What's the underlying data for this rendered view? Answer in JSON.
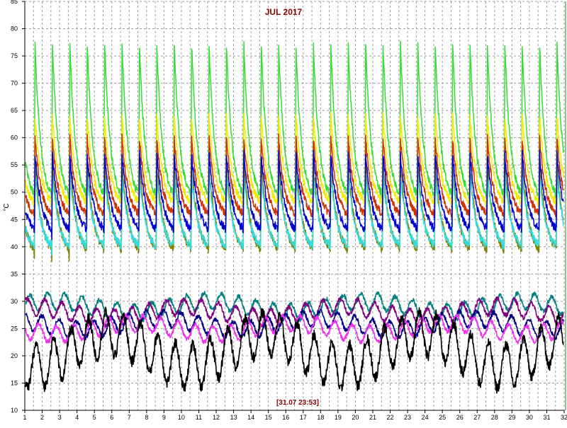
{
  "chart_data": {
    "type": "line",
    "title": "JUL 2017",
    "ylabel": "°C",
    "xlabel": "",
    "timestamp": "[31.07 23:53]",
    "xlim": [
      1,
      32
    ],
    "ylim": [
      10,
      85
    ],
    "x_ticks": [
      1,
      2,
      3,
      4,
      5,
      6,
      7,
      8,
      9,
      10,
      11,
      12,
      13,
      14,
      15,
      16,
      17,
      18,
      19,
      20,
      21,
      22,
      23,
      24,
      25,
      26,
      27,
      28,
      29,
      30,
      31,
      32
    ],
    "y_ticks": [
      10,
      15,
      20,
      25,
      30,
      35,
      40,
      45,
      50,
      55,
      60,
      65,
      70,
      75,
      80,
      85
    ],
    "grid": true,
    "colors": {
      "title": "#8b0000",
      "timestamp": "#8b0000",
      "grid": "#9e9e9e",
      "axis": "#000000",
      "tick_label": "#000000",
      "right_edge": "#2e7d32"
    },
    "series": [
      {
        "color": "#33dd33",
        "peak": 77,
        "low": 48,
        "decay": 3.0,
        "baseline": null
      },
      {
        "color": "#eeee00",
        "peak": 64,
        "low": 47,
        "decay": 2.8,
        "baseline": null
      },
      {
        "color": "#cc3300",
        "peak": 60,
        "low": 45,
        "decay": 2.8,
        "baseline": null
      },
      {
        "color": "#808000",
        "peak": 55,
        "low": 38,
        "decay": 2.5,
        "baseline": null
      },
      {
        "color": "#33dddd",
        "peak": 53,
        "low": 39,
        "decay": 2.6,
        "baseline": null
      },
      {
        "color": "#0000cc",
        "peak": 57,
        "low": 42,
        "decay": 2.6,
        "baseline": null
      },
      {
        "color": "#008080",
        "peak": null,
        "low": null,
        "decay": null,
        "baseline": 29
      },
      {
        "color": "#800080",
        "peak": null,
        "low": null,
        "decay": null,
        "baseline": 28
      },
      {
        "color": "#000080",
        "peak": null,
        "low": null,
        "decay": null,
        "baseline": 25.8
      },
      {
        "color": "#ee33ee",
        "peak": null,
        "low": null,
        "decay": null,
        "baseline": 25
      },
      {
        "color": "#000000",
        "peak": null,
        "low": null,
        "decay": null,
        "baseline": 21
      }
    ]
  }
}
